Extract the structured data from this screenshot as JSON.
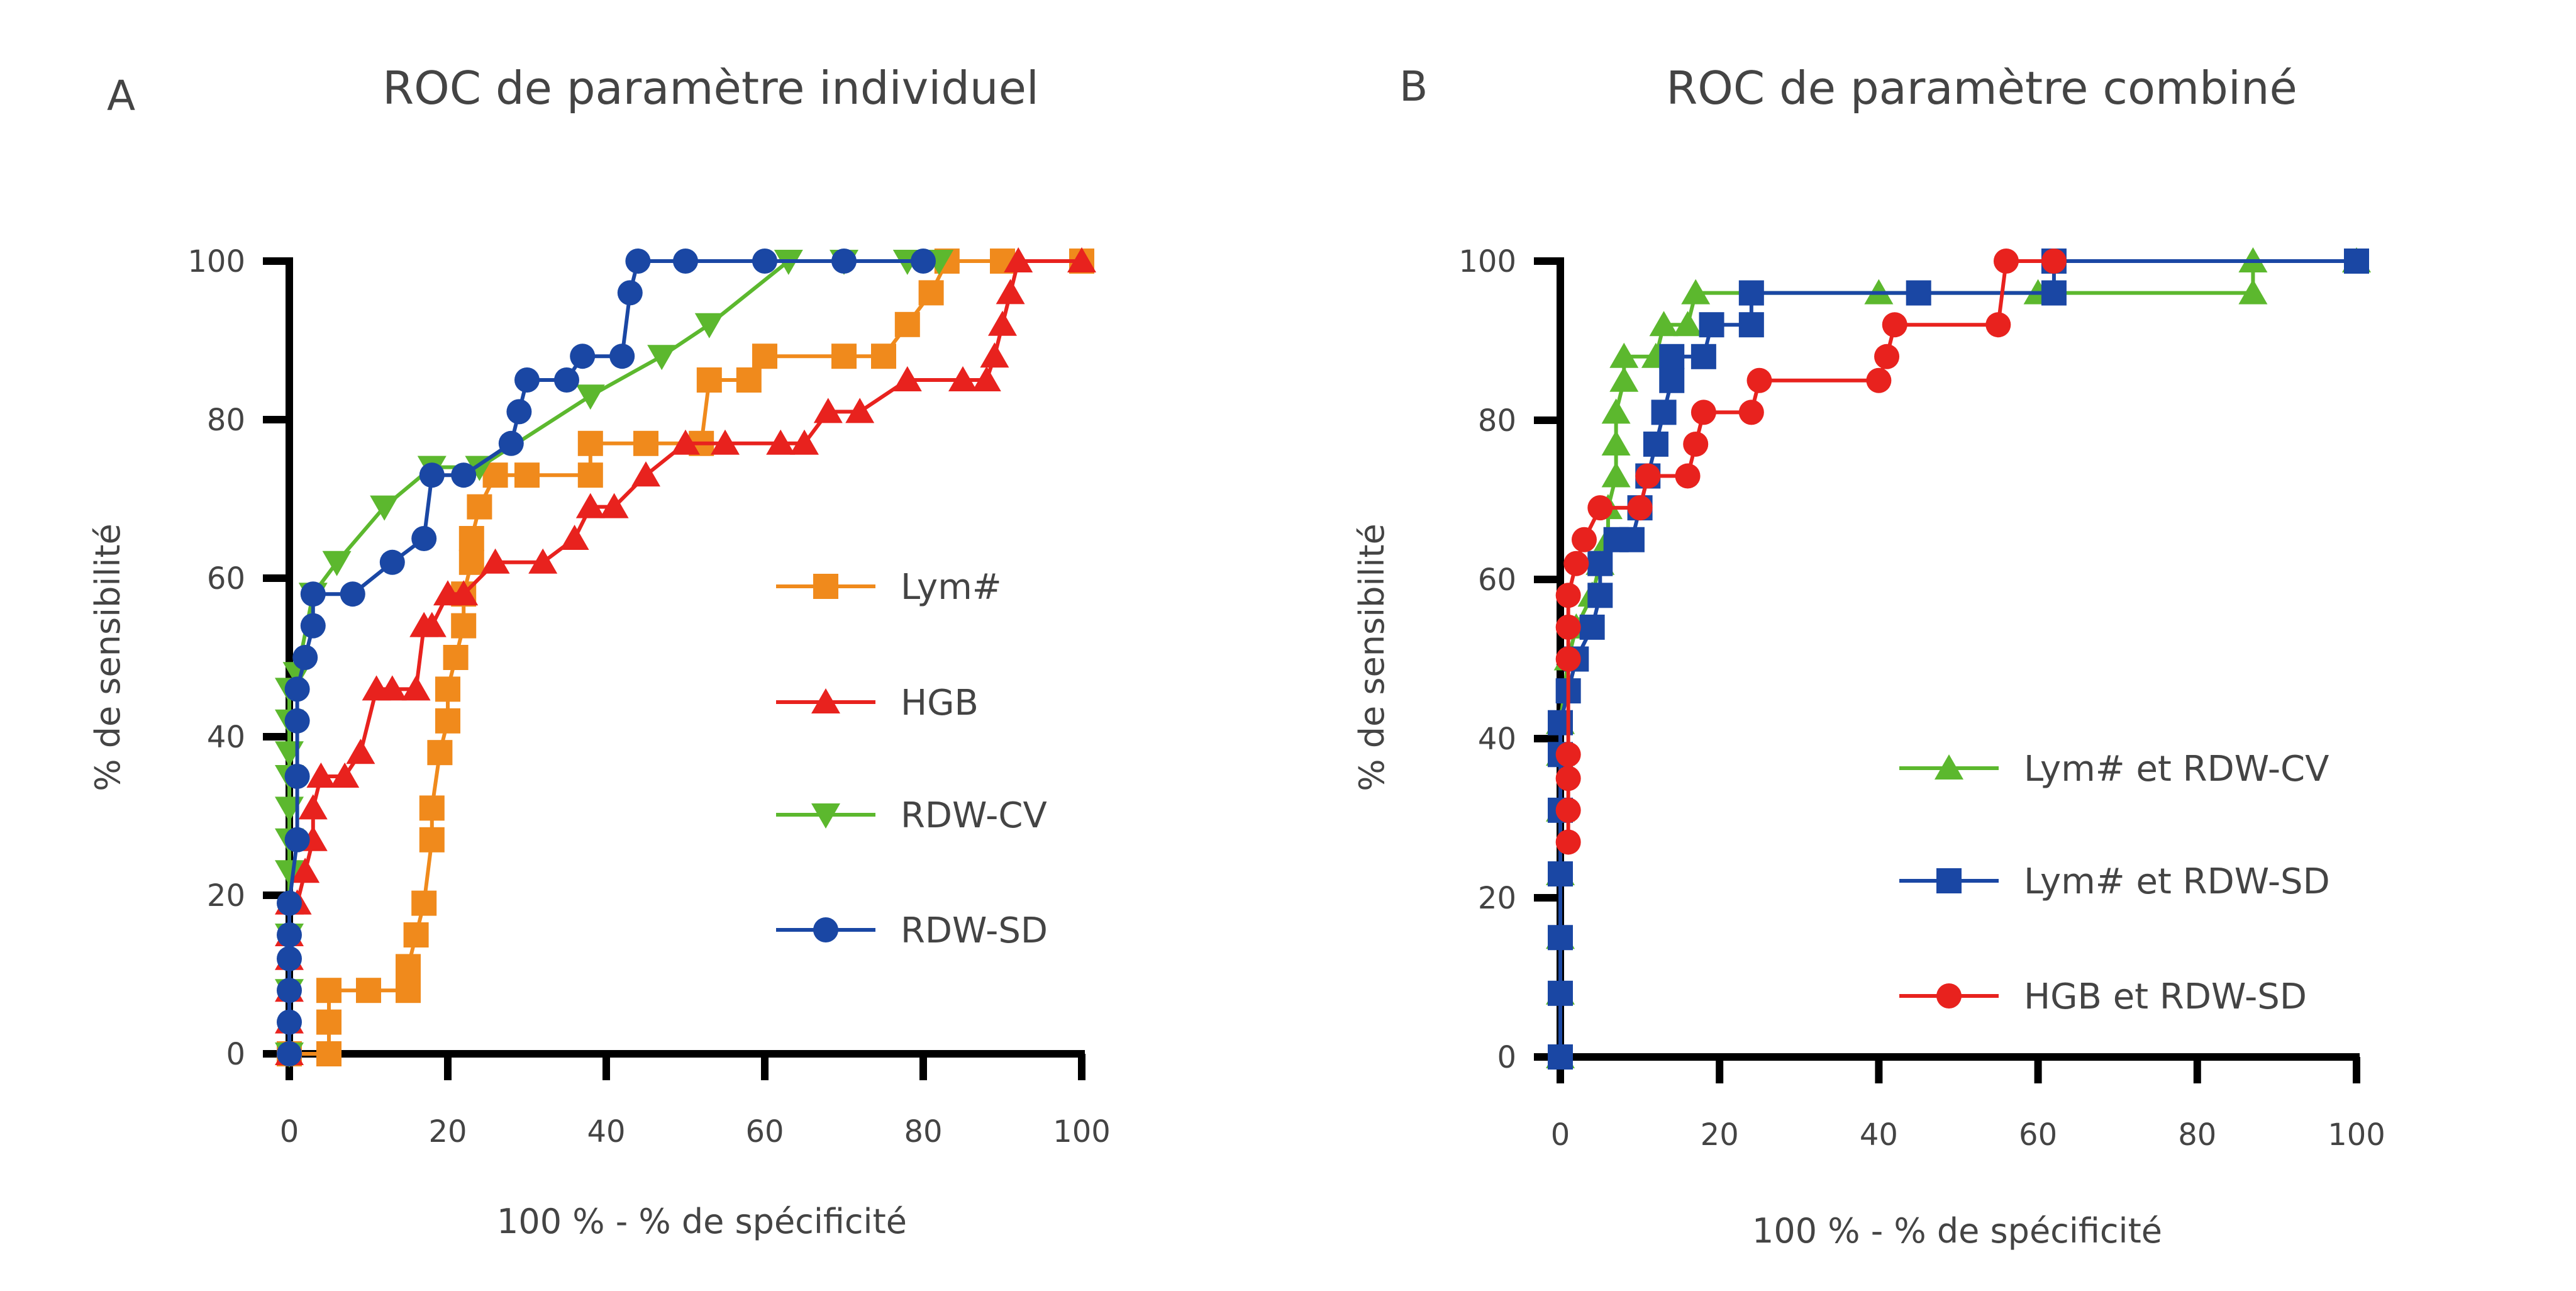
{
  "chart_data": [
    {
      "panel": "A",
      "type": "line",
      "title": "ROC de paramètre individuel",
      "xlabel": "100 % - % de spécificité",
      "ylabel": "% de sensibilité",
      "xlim": [
        0,
        100
      ],
      "ylim": [
        0,
        100
      ],
      "xticks": [
        0,
        20,
        40,
        60,
        80,
        100
      ],
      "yticks": [
        0,
        20,
        40,
        60,
        80,
        100
      ],
      "grid": false,
      "legend_placement": "center-right",
      "series": [
        {
          "name": "Lym#",
          "color": "#f08a1c",
          "marker": "square",
          "points": [
            [
              0,
              0
            ],
            [
              5,
              0
            ],
            [
              5,
              4
            ],
            [
              5,
              8
            ],
            [
              10,
              8
            ],
            [
              15,
              8
            ],
            [
              15,
              11
            ],
            [
              16,
              15
            ],
            [
              17,
              19
            ],
            [
              18,
              27
            ],
            [
              18,
              31
            ],
            [
              19,
              38
            ],
            [
              20,
              42
            ],
            [
              20,
              46
            ],
            [
              21,
              50
            ],
            [
              22,
              54
            ],
            [
              22,
              58
            ],
            [
              23,
              62
            ],
            [
              23,
              65
            ],
            [
              24,
              69
            ],
            [
              26,
              73
            ],
            [
              30,
              73
            ],
            [
              38,
              73
            ],
            [
              38,
              77
            ],
            [
              45,
              77
            ],
            [
              52,
              77
            ],
            [
              53,
              85
            ],
            [
              58,
              85
            ],
            [
              60,
              88
            ],
            [
              70,
              88
            ],
            [
              75,
              88
            ],
            [
              78,
              92
            ],
            [
              81,
              96
            ],
            [
              83,
              100
            ],
            [
              90,
              100
            ],
            [
              100,
              100
            ]
          ]
        },
        {
          "name": "HGB",
          "color": "#e8221e",
          "marker": "triangle-up",
          "points": [
            [
              0,
              0
            ],
            [
              0,
              4
            ],
            [
              0,
              8
            ],
            [
              0,
              12
            ],
            [
              0,
              15
            ],
            [
              0,
              19
            ],
            [
              1,
              19
            ],
            [
              2,
              23
            ],
            [
              3,
              27
            ],
            [
              3,
              31
            ],
            [
              4,
              35
            ],
            [
              7,
              35
            ],
            [
              9,
              38
            ],
            [
              11,
              46
            ],
            [
              13,
              46
            ],
            [
              16,
              46
            ],
            [
              17,
              54
            ],
            [
              18,
              54
            ],
            [
              20,
              58
            ],
            [
              22,
              58
            ],
            [
              26,
              62
            ],
            [
              32,
              62
            ],
            [
              36,
              65
            ],
            [
              38,
              69
            ],
            [
              41,
              69
            ],
            [
              45,
              73
            ],
            [
              50,
              77
            ],
            [
              55,
              77
            ],
            [
              62,
              77
            ],
            [
              65,
              77
            ],
            [
              68,
              81
            ],
            [
              72,
              81
            ],
            [
              78,
              85
            ],
            [
              85,
              85
            ],
            [
              88,
              85
            ],
            [
              89,
              88
            ],
            [
              90,
              92
            ],
            [
              91,
              96
            ],
            [
              92,
              100
            ],
            [
              100,
              100
            ]
          ]
        },
        {
          "name": "RDW-CV",
          "color": "#5cb82e",
          "marker": "triangle-down",
          "points": [
            [
              0,
              0
            ],
            [
              0,
              8
            ],
            [
              0,
              15
            ],
            [
              0,
              23
            ],
            [
              0,
              27
            ],
            [
              0,
              31
            ],
            [
              0,
              35
            ],
            [
              0,
              38
            ],
            [
              0,
              42
            ],
            [
              0,
              46
            ],
            [
              1,
              48
            ],
            [
              3,
              58
            ],
            [
              6,
              62
            ],
            [
              12,
              69
            ],
            [
              18,
              74
            ],
            [
              24,
              74
            ],
            [
              38,
              83
            ],
            [
              47,
              88
            ],
            [
              53,
              92
            ],
            [
              63,
              100
            ],
            [
              70,
              100
            ],
            [
              78,
              100
            ],
            [
              82,
              100
            ]
          ]
        },
        {
          "name": "RDW-SD",
          "color": "#1a47a4",
          "marker": "circle",
          "points": [
            [
              0,
              0
            ],
            [
              0,
              4
            ],
            [
              0,
              8
            ],
            [
              0,
              12
            ],
            [
              0,
              15
            ],
            [
              0,
              19
            ],
            [
              1,
              27
            ],
            [
              1,
              35
            ],
            [
              1,
              42
            ],
            [
              1,
              46
            ],
            [
              2,
              50
            ],
            [
              3,
              54
            ],
            [
              3,
              58
            ],
            [
              8,
              58
            ],
            [
              13,
              62
            ],
            [
              17,
              65
            ],
            [
              18,
              73
            ],
            [
              22,
              73
            ],
            [
              28,
              77
            ],
            [
              29,
              81
            ],
            [
              30,
              85
            ],
            [
              35,
              85
            ],
            [
              37,
              88
            ],
            [
              42,
              88
            ],
            [
              43,
              96
            ],
            [
              44,
              100
            ],
            [
              50,
              100
            ],
            [
              60,
              100
            ],
            [
              70,
              100
            ],
            [
              80,
              100
            ]
          ]
        }
      ]
    },
    {
      "panel": "B",
      "type": "line",
      "title": "ROC de paramètre combiné",
      "xlabel": "100 % - % de spécificité",
      "ylabel": "% de sensibilité",
      "xlim": [
        0,
        100
      ],
      "ylim": [
        0,
        100
      ],
      "xticks": [
        0,
        20,
        40,
        60,
        80,
        100
      ],
      "yticks": [
        0,
        20,
        40,
        60,
        80,
        100
      ],
      "grid": false,
      "legend_placement": "center-right",
      "series": [
        {
          "name": "Lym# et RDW-CV",
          "color": "#5cb82e",
          "marker": "triangle-up",
          "points": [
            [
              0,
              0
            ],
            [
              0,
              8
            ],
            [
              0,
              15
            ],
            [
              0,
              23
            ],
            [
              0,
              31
            ],
            [
              0,
              38
            ],
            [
              0,
              42
            ],
            [
              1,
              50
            ],
            [
              2,
              54
            ],
            [
              4,
              58
            ],
            [
              5,
              62
            ],
            [
              6,
              65
            ],
            [
              6,
              69
            ],
            [
              7,
              73
            ],
            [
              7,
              77
            ],
            [
              7,
              81
            ],
            [
              8,
              85
            ],
            [
              8,
              88
            ],
            [
              12,
              88
            ],
            [
              13,
              92
            ],
            [
              16,
              92
            ],
            [
              17,
              96
            ],
            [
              40,
              96
            ],
            [
              60,
              96
            ],
            [
              87,
              96
            ],
            [
              87,
              100
            ],
            [
              100,
              100
            ]
          ]
        },
        {
          "name": "Lym# et RDW-SD",
          "color": "#1a47a4",
          "marker": "square",
          "points": [
            [
              0,
              0
            ],
            [
              0,
              8
            ],
            [
              0,
              15
            ],
            [
              0,
              23
            ],
            [
              0,
              31
            ],
            [
              0,
              38
            ],
            [
              0,
              42
            ],
            [
              1,
              46
            ],
            [
              2,
              50
            ],
            [
              4,
              54
            ],
            [
              5,
              58
            ],
            [
              5,
              62
            ],
            [
              7,
              65
            ],
            [
              9,
              65
            ],
            [
              10,
              69
            ],
            [
              11,
              73
            ],
            [
              12,
              77
            ],
            [
              13,
              81
            ],
            [
              14,
              85
            ],
            [
              14,
              88
            ],
            [
              18,
              88
            ],
            [
              19,
              92
            ],
            [
              24,
              92
            ],
            [
              24,
              96
            ],
            [
              45,
              96
            ],
            [
              62,
              96
            ],
            [
              62,
              100
            ],
            [
              100,
              100
            ]
          ]
        },
        {
          "name": "HGB et RDW-SD",
          "color": "#e8221e",
          "marker": "circle",
          "points": [
            [
              1,
              27
            ],
            [
              1,
              31
            ],
            [
              1,
              35
            ],
            [
              1,
              38
            ],
            [
              1,
              50
            ],
            [
              1,
              54
            ],
            [
              1,
              58
            ],
            [
              2,
              62
            ],
            [
              3,
              65
            ],
            [
              5,
              69
            ],
            [
              10,
              69
            ],
            [
              11,
              73
            ],
            [
              16,
              73
            ],
            [
              17,
              77
            ],
            [
              18,
              81
            ],
            [
              24,
              81
            ],
            [
              25,
              85
            ],
            [
              40,
              85
            ],
            [
              41,
              88
            ],
            [
              42,
              92
            ],
            [
              55,
              92
            ],
            [
              56,
              100
            ],
            [
              62,
              100
            ]
          ]
        }
      ]
    }
  ]
}
